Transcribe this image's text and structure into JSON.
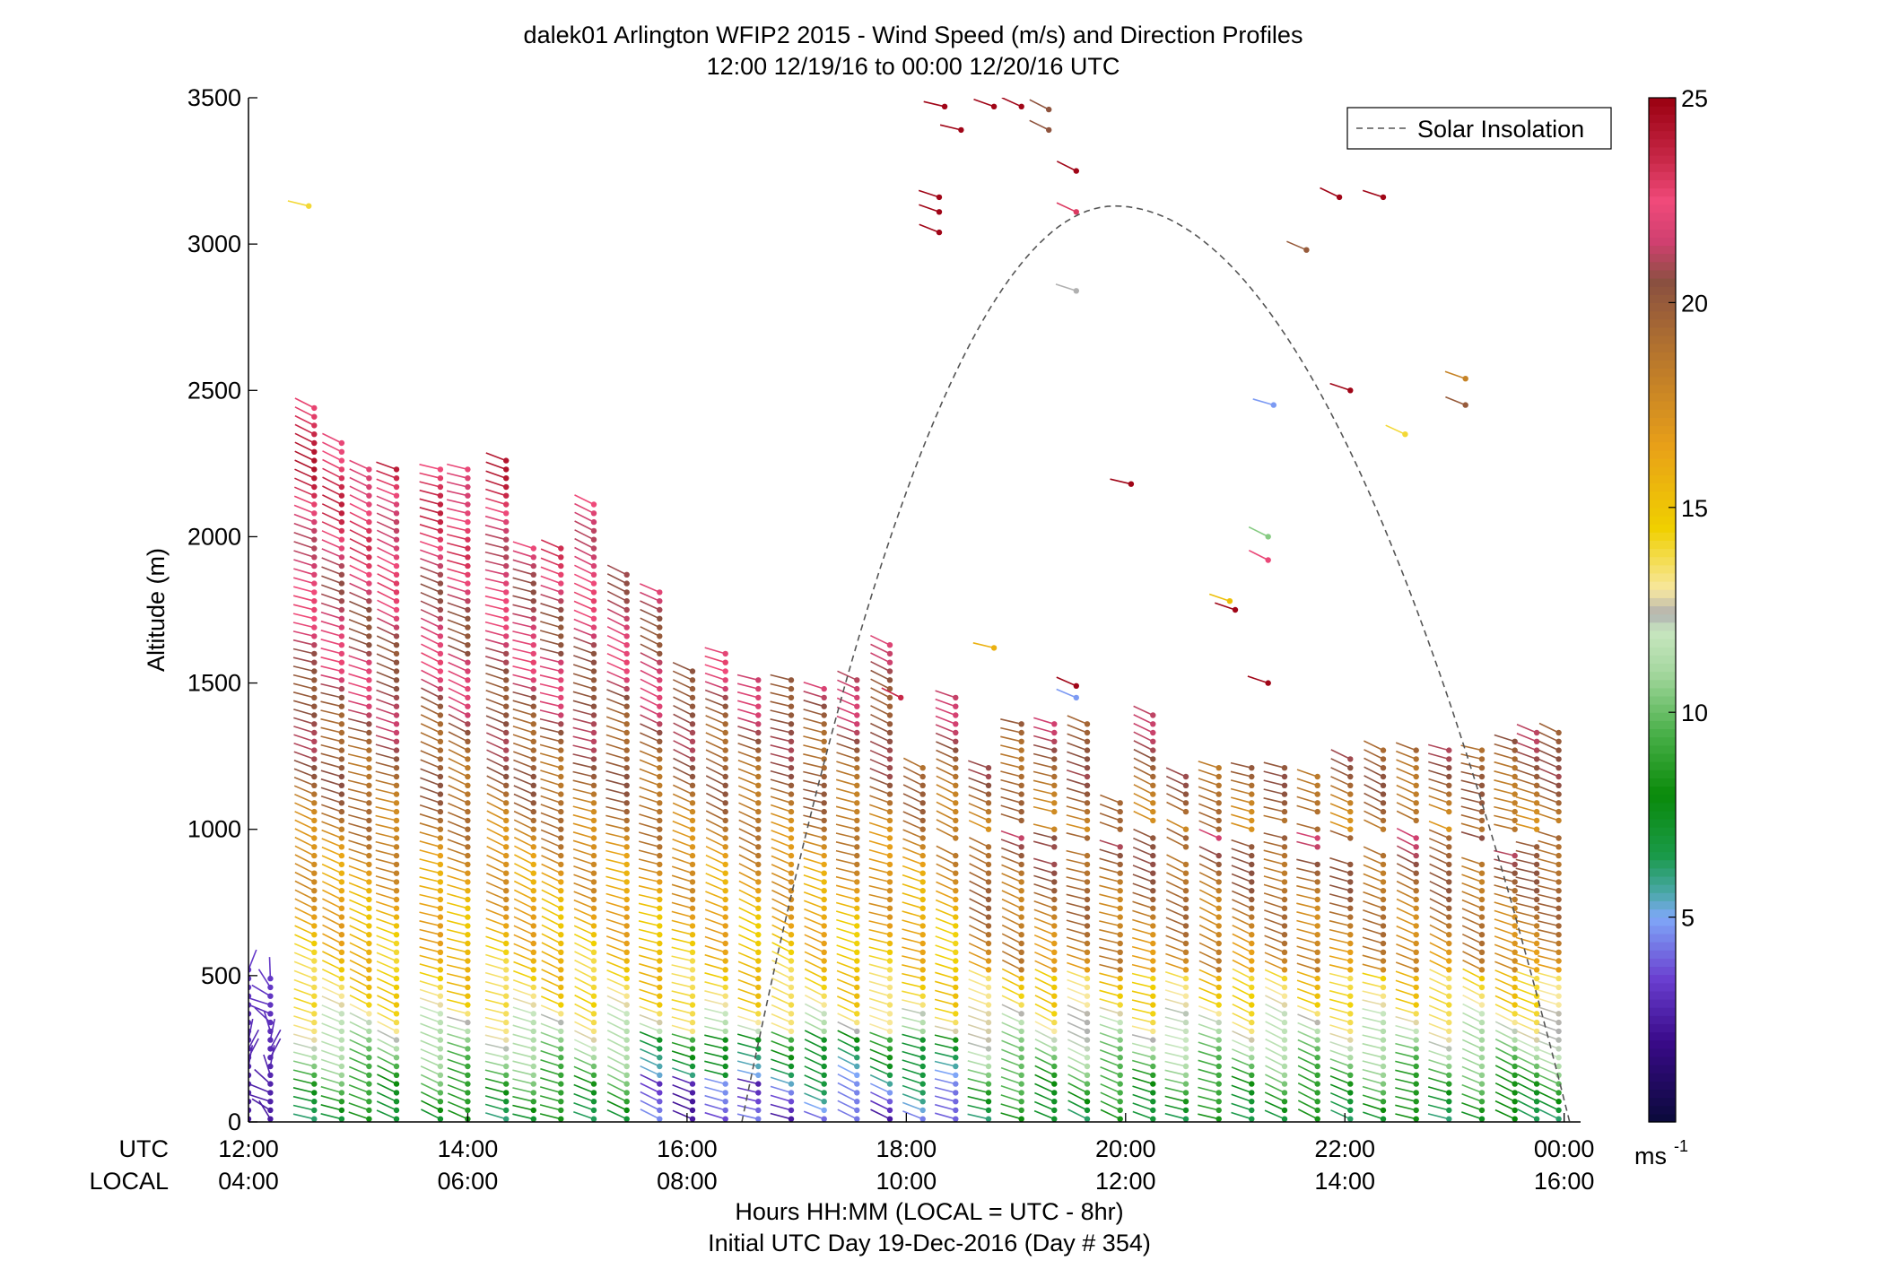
{
  "chart_data": {
    "type": "scatter",
    "title": "dalek01 Arlington WFIP2 2015 - Wind Speed (m/s) and Direction Profiles",
    "subtitle": "12:00 12/19/16 to 00:00 12/20/16  UTC",
    "ylabel": "Altitude (m)",
    "xlabel": "Hours HH:MM  (LOCAL = UTC - 8hr)",
    "xlabel2": "Initial UTC Day 19-Dec-2016 (Day # 354)",
    "row_label_utc": "UTC",
    "row_label_local": "LOCAL",
    "xlim": [
      12,
      24.15
    ],
    "ylim": [
      0,
      3500
    ],
    "x_ticks": [
      {
        "value": 12,
        "utc": "12:00",
        "local": "04:00"
      },
      {
        "value": 14,
        "utc": "14:00",
        "local": "06:00"
      },
      {
        "value": 16,
        "utc": "16:00",
        "local": "08:00"
      },
      {
        "value": 18,
        "utc": "18:00",
        "local": "10:00"
      },
      {
        "value": 20,
        "utc": "20:00",
        "local": "12:00"
      },
      {
        "value": 22,
        "utc": "22:00",
        "local": "14:00"
      },
      {
        "value": 24,
        "utc": "00:00",
        "local": "16:00"
      }
    ],
    "y_ticks": [
      {
        "value": 0,
        "label": "0"
      },
      {
        "value": 500,
        "label": "500"
      },
      {
        "value": 1000,
        "label": "1000"
      },
      {
        "value": 1500,
        "label": "1500"
      },
      {
        "value": 2000,
        "label": "2000"
      },
      {
        "value": 2500,
        "label": "2500"
      },
      {
        "value": 3000,
        "label": "3000"
      },
      {
        "value": 3500,
        "label": "3500"
      }
    ],
    "legend": {
      "label": "Solar Insolation",
      "position": "top-right"
    },
    "solar_insolation": {
      "start": 16.5,
      "end": 24.05,
      "peak_time": 19.9,
      "peak_altitude": 3130
    },
    "colorbar": {
      "min": 0,
      "max": 25,
      "unit": "ms",
      "ticks": [
        {
          "value": 5,
          "label": "5"
        },
        {
          "value": 10,
          "label": "10"
        },
        {
          "value": 15,
          "label": "15"
        },
        {
          "value": 20,
          "label": "20"
        },
        {
          "value": 25,
          "label": "25"
        }
      ],
      "stops": [
        [
          0,
          "#0a0a3a"
        ],
        [
          2,
          "#3a0a8a"
        ],
        [
          3.5,
          "#6a3fd0"
        ],
        [
          5,
          "#7fa8f8"
        ],
        [
          5.6,
          "#4aa8a8"
        ],
        [
          6.5,
          "#1a9a4a"
        ],
        [
          8,
          "#0a8a0a"
        ],
        [
          9.5,
          "#4ab04a"
        ],
        [
          11,
          "#a6d8a0"
        ],
        [
          12,
          "#c8e6c0"
        ],
        [
          12.4,
          "#b0b0b0"
        ],
        [
          13,
          "#f8e8a0"
        ],
        [
          14.5,
          "#f0d000"
        ],
        [
          16.5,
          "#e8a018"
        ],
        [
          19,
          "#b07030"
        ],
        [
          20.5,
          "#8a5040"
        ],
        [
          21.5,
          "#d04070"
        ],
        [
          22.5,
          "#f04a7a"
        ],
        [
          23.5,
          "#c82848"
        ],
        [
          25,
          "#9a0010"
        ]
      ]
    },
    "profiles": [
      {
        "t": 12.0,
        "top": 520
      },
      {
        "t": 12.2,
        "top": 500
      },
      {
        "t": 12.6,
        "top": 2450
      },
      {
        "t": 12.85,
        "top": 2330
      },
      {
        "t": 13.1,
        "top": 2240
      },
      {
        "t": 13.35,
        "top": 2240
      },
      {
        "t": 13.75,
        "top": 2240
      },
      {
        "t": 14.0,
        "top": 2230
      },
      {
        "t": 14.35,
        "top": 2270
      },
      {
        "t": 14.6,
        "top": 1960
      },
      {
        "t": 14.85,
        "top": 1980
      },
      {
        "t": 15.15,
        "top": 2120
      },
      {
        "t": 15.45,
        "top": 1890
      },
      {
        "t": 15.75,
        "top": 1830
      },
      {
        "t": 16.05,
        "top": 1560
      },
      {
        "t": 16.35,
        "top": 1620
      },
      {
        "t": 16.65,
        "top": 1520
      },
      {
        "t": 16.95,
        "top": 1510
      },
      {
        "t": 17.25,
        "top": 1500
      },
      {
        "t": 17.55,
        "top": 1530
      },
      {
        "t": 17.85,
        "top": 1630
      },
      {
        "t": 18.15,
        "top": 1210
      },
      {
        "t": 18.45,
        "top": 1450
      },
      {
        "t": 18.75,
        "top": 1220
      },
      {
        "t": 19.05,
        "top": 1380
      },
      {
        "t": 19.35,
        "top": 1370
      },
      {
        "t": 19.65,
        "top": 1380
      },
      {
        "t": 19.95,
        "top": 1090
      },
      {
        "t": 20.25,
        "top": 1390
      },
      {
        "t": 20.55,
        "top": 1200
      },
      {
        "t": 20.85,
        "top": 1210
      },
      {
        "t": 21.15,
        "top": 1210
      },
      {
        "t": 21.45,
        "top": 1230
      },
      {
        "t": 21.75,
        "top": 1200
      },
      {
        "t": 22.05,
        "top": 1250
      },
      {
        "t": 22.35,
        "top": 1280
      },
      {
        "t": 22.65,
        "top": 1290
      },
      {
        "t": 22.95,
        "top": 1290
      },
      {
        "t": 23.25,
        "top": 1280
      },
      {
        "t": 23.55,
        "top": 1300
      },
      {
        "t": 23.75,
        "top": 1340
      },
      {
        "t": 23.95,
        "top": 1340
      }
    ],
    "isolated_barbs": [
      {
        "t": 17.95,
        "alt": 1450,
        "speed": 23.5
      },
      {
        "t": 18.35,
        "alt": 3470,
        "speed": 24.8
      },
      {
        "t": 18.5,
        "alt": 3390,
        "speed": 24.8
      },
      {
        "t": 18.8,
        "alt": 3470,
        "speed": 24.8
      },
      {
        "t": 19.05,
        "alt": 3470,
        "speed": 24.8
      },
      {
        "t": 19.3,
        "alt": 3460,
        "speed": 20.3
      },
      {
        "t": 19.3,
        "alt": 3390,
        "speed": 20.3
      },
      {
        "t": 19.55,
        "alt": 3250,
        "speed": 24.8
      },
      {
        "t": 18.3,
        "alt": 3160,
        "speed": 24.8
      },
      {
        "t": 18.3,
        "alt": 3110,
        "speed": 24.8
      },
      {
        "t": 18.3,
        "alt": 3040,
        "speed": 24.8
      },
      {
        "t": 19.55,
        "alt": 3110,
        "speed": 23.0
      },
      {
        "t": 19.55,
        "alt": 2840,
        "speed": 12.4
      },
      {
        "t": 19.55,
        "alt": 1490,
        "speed": 24.8
      },
      {
        "t": 19.55,
        "alt": 1450,
        "speed": 4.8
      },
      {
        "t": 18.8,
        "alt": 1620,
        "speed": 15.8
      },
      {
        "t": 20.05,
        "alt": 2180,
        "speed": 24.8
      },
      {
        "t": 21.35,
        "alt": 2450,
        "speed": 4.8
      },
      {
        "t": 21.3,
        "alt": 2000,
        "speed": 10.5
      },
      {
        "t": 21.3,
        "alt": 1920,
        "speed": 22.3
      },
      {
        "t": 21.0,
        "alt": 1750,
        "speed": 24.8
      },
      {
        "t": 20.95,
        "alt": 1780,
        "speed": 15.2
      },
      {
        "t": 21.3,
        "alt": 1500,
        "speed": 24.8
      },
      {
        "t": 21.65,
        "alt": 2980,
        "speed": 20.0
      },
      {
        "t": 21.95,
        "alt": 3160,
        "speed": 24.8
      },
      {
        "t": 22.35,
        "alt": 3160,
        "speed": 24.8
      },
      {
        "t": 22.05,
        "alt": 2500,
        "speed": 24.8
      },
      {
        "t": 22.55,
        "alt": 2350,
        "speed": 14.0
      },
      {
        "t": 23.1,
        "alt": 2540,
        "speed": 18.0
      },
      {
        "t": 23.1,
        "alt": 2450,
        "speed": 20.0
      },
      {
        "t": 12.55,
        "alt": 3130,
        "speed": 14.0
      }
    ]
  }
}
